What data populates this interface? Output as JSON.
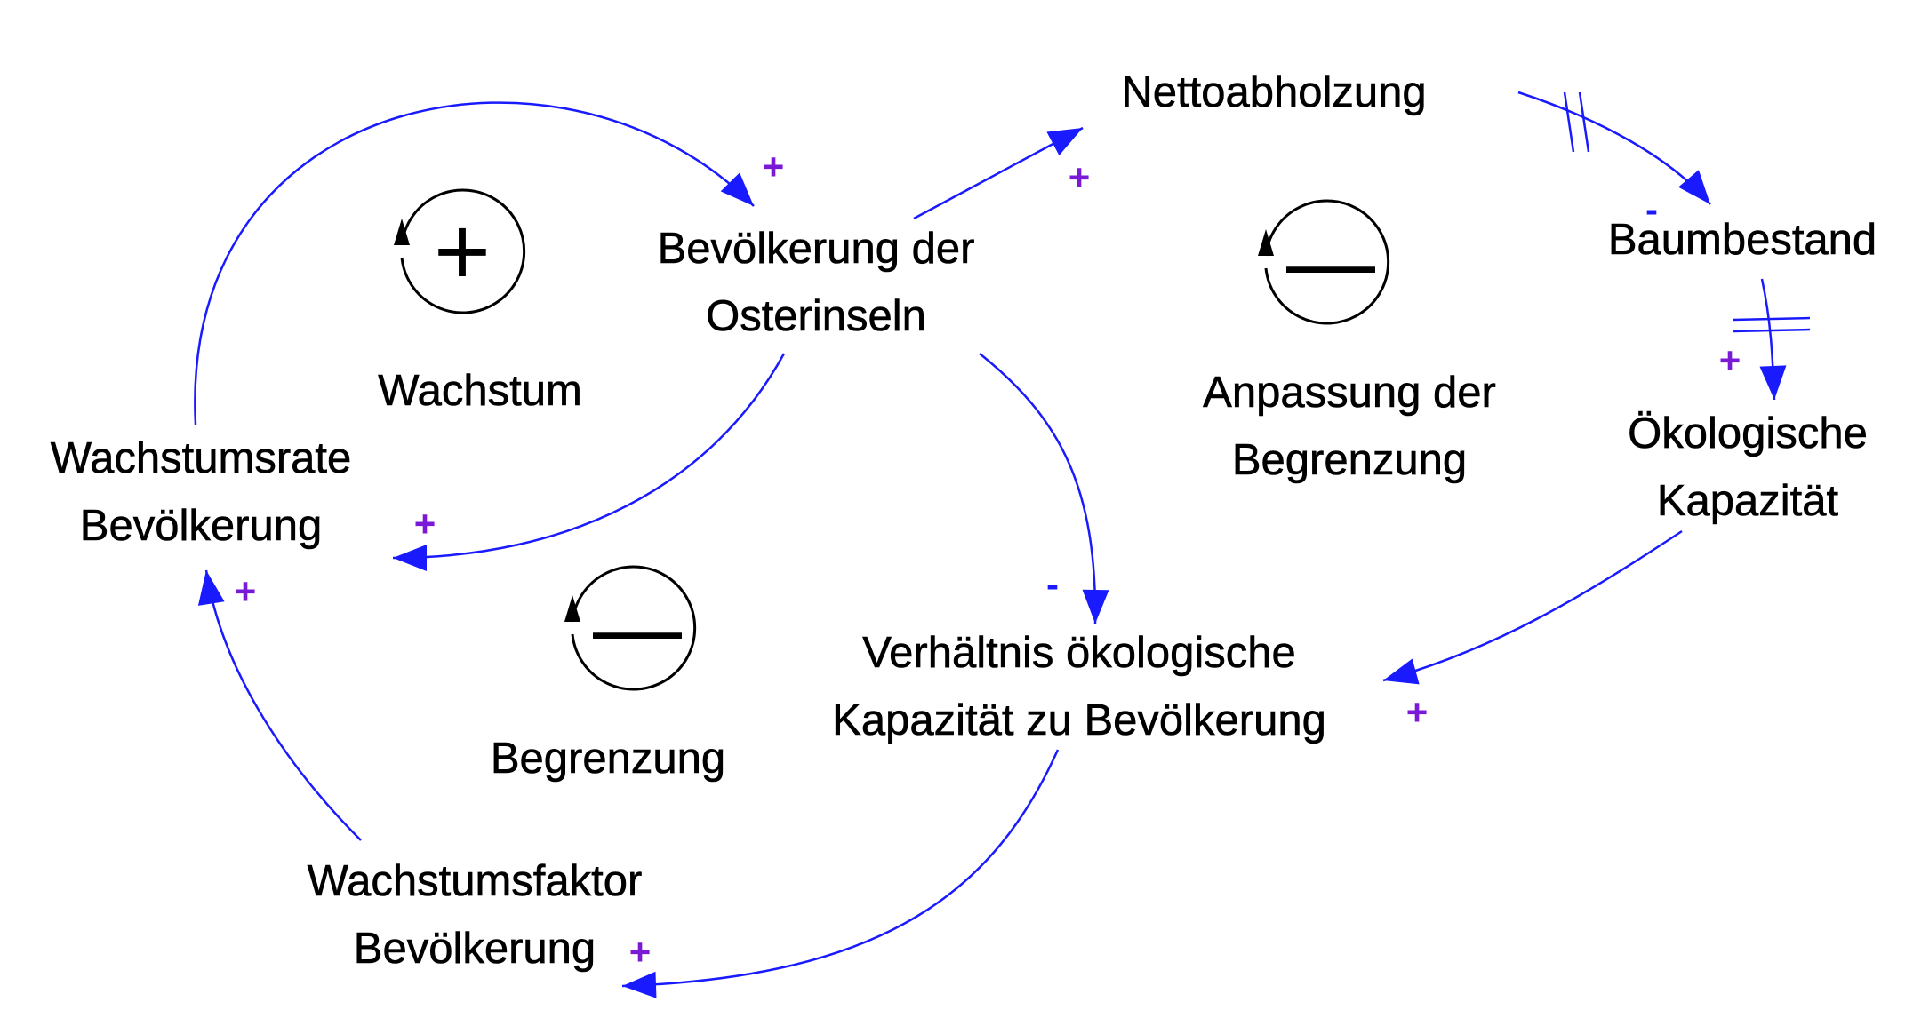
{
  "colors": {
    "link": "#1a1aff",
    "text": "#000000",
    "polarity_plus": "#7a1ad6",
    "polarity_minus": "#1a1aff",
    "loop_symbol": "#000000",
    "background": "#ffffff"
  },
  "nodes": {
    "population": {
      "lines": [
        "Bevölkerung der",
        "Osterinseln"
      ]
    },
    "deforestation": {
      "lines": [
        "Nettoabholzung"
      ]
    },
    "tree_stock": {
      "lines": [
        "Baumbestand"
      ]
    },
    "eco_capacity": {
      "lines": [
        "Ökologische",
        "Kapazität"
      ]
    },
    "ratio": {
      "lines": [
        "Verhältnis ökologische",
        "Kapazität zu Bevölkerung"
      ]
    },
    "growth_rate": {
      "lines": [
        "Wachstumsrate",
        "Bevölkerung"
      ]
    },
    "growth_factor": {
      "lines": [
        "Wachstumsfaktor",
        "Bevölkerung"
      ]
    }
  },
  "links": [
    {
      "id": "growth-rate-to-population",
      "polarity": "+",
      "delay": false
    },
    {
      "id": "population-to-growth-rate",
      "polarity": "+",
      "delay": false
    },
    {
      "id": "population-to-deforestation",
      "polarity": "+",
      "delay": false
    },
    {
      "id": "deforestation-to-tree-stock",
      "polarity": "-",
      "delay": true
    },
    {
      "id": "tree-stock-to-eco-capacity",
      "polarity": "+",
      "delay": true
    },
    {
      "id": "eco-capacity-to-ratio",
      "polarity": "+",
      "delay": false
    },
    {
      "id": "population-to-ratio",
      "polarity": "-",
      "delay": false
    },
    {
      "id": "ratio-to-growth-factor",
      "polarity": "+",
      "delay": false
    },
    {
      "id": "growth-factor-to-growth-rate",
      "polarity": "+",
      "delay": false
    }
  ],
  "loops": [
    {
      "id": "growth",
      "symbol": "+",
      "name_lines": [
        "Wachstum"
      ]
    },
    {
      "id": "limit",
      "symbol": "—",
      "name_lines": [
        "Begrenzung"
      ]
    },
    {
      "id": "limit-adjustment",
      "symbol": "—",
      "name_lines": [
        "Anpassung der",
        "Begrenzung"
      ]
    }
  ]
}
